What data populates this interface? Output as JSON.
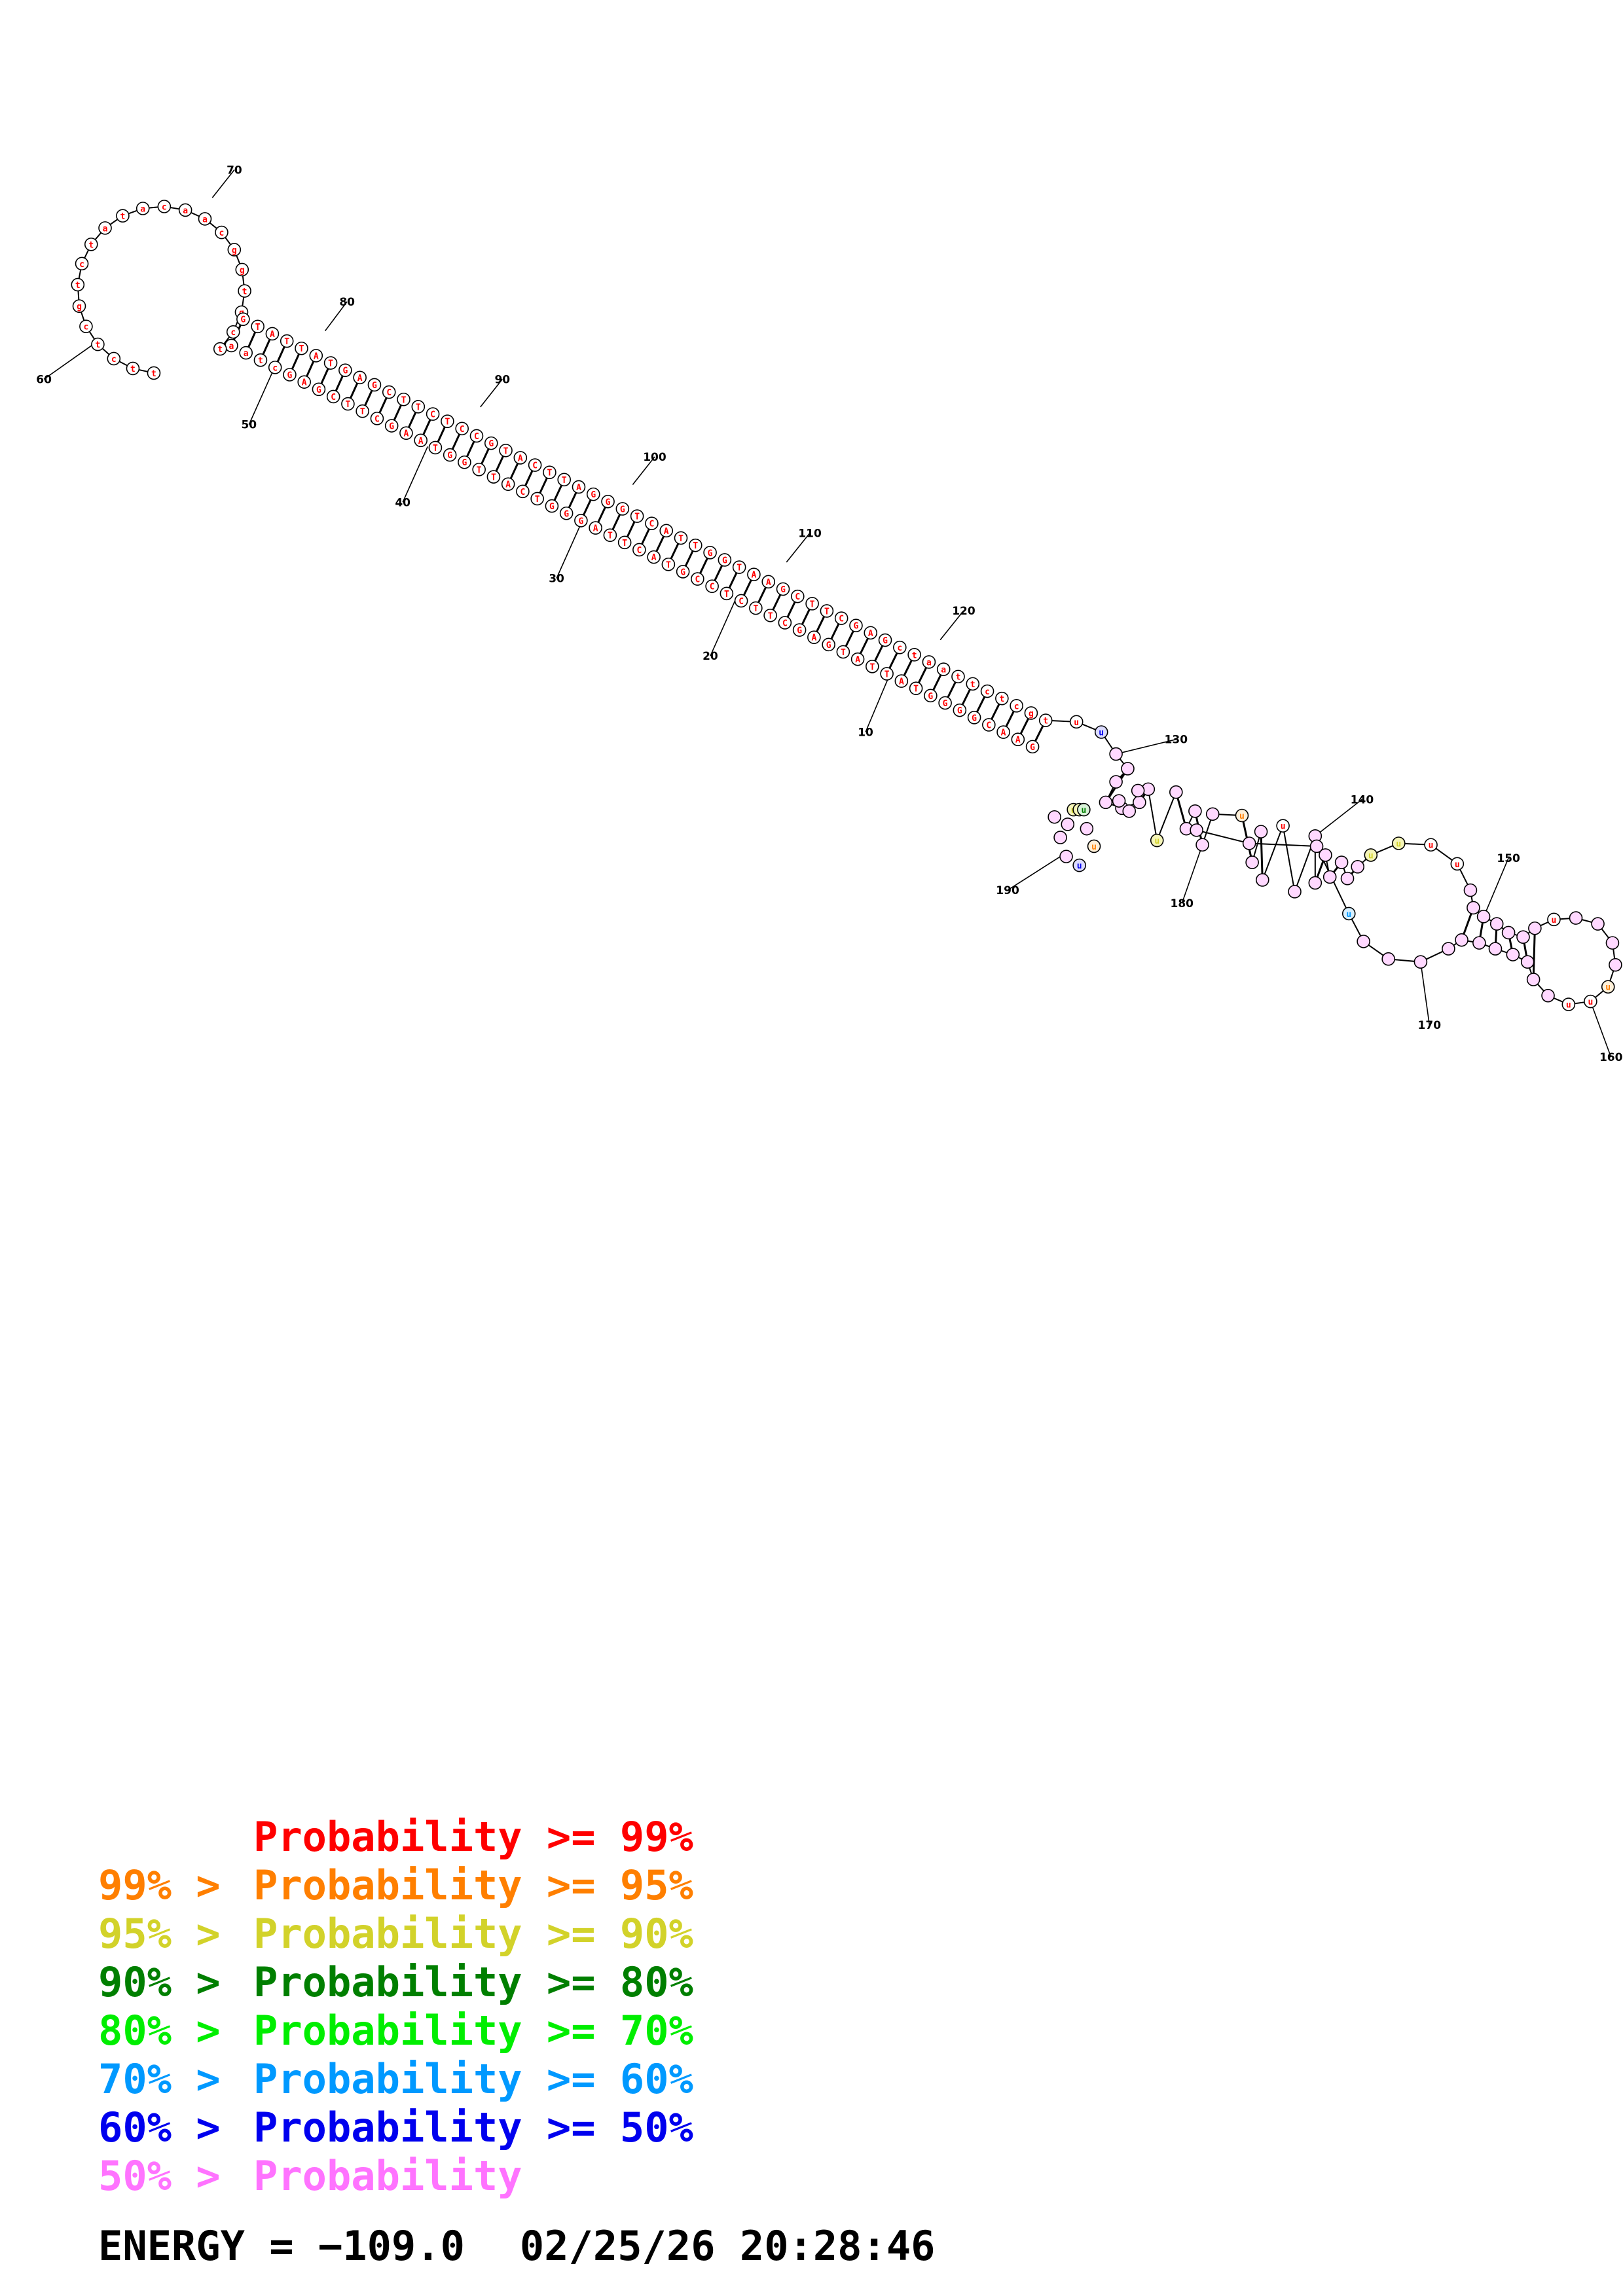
{
  "colors": {
    "p99": "#ff0000",
    "p95": "#ff7f00",
    "p90": "#d2d22a",
    "p80": "#007f00",
    "p70": "#00ee00",
    "p60": "#0099ff",
    "p50": "#0000ee",
    "plow": "#ff73ff"
  },
  "position_labels": [
    "10",
    "20",
    "30",
    "40",
    "50",
    "60",
    "70",
    "80",
    "90",
    "100",
    "110",
    "120",
    "130",
    "140",
    "150",
    "160",
    "170",
    "180",
    "190"
  ],
  "nucleotides_5prime": "GAACGGGGTATTATGAGCTTCTCCGTACTTAGGGTCATTGGTAAGCTTCGAGctaattctcgtctatacaacggtgctgcTTGAAGAGCTTAACCCGTTAAGGATCGTCAAGTAAACCCTGGTTCG",
  "legend": {
    "rows": [
      {
        "prefix": "",
        "text": "Probability >= 99%",
        "color_key": "p99"
      },
      {
        "prefix": "99% >",
        "text": "Probability >= 95%",
        "color_key": "p95"
      },
      {
        "prefix": "95% >",
        "text": "Probability >= 90%",
        "color_key": "p90"
      },
      {
        "prefix": "90% >",
        "text": "Probability >= 80%",
        "color_key": "p80"
      },
      {
        "prefix": "80% >",
        "text": "Probability >= 70%",
        "color_key": "p70"
      },
      {
        "prefix": "70% >",
        "text": "Probability >= 60%",
        "color_key": "p60"
      },
      {
        "prefix": "60% >",
        "text": "Probability >= 50%",
        "color_key": "p50"
      },
      {
        "prefix": "50% >",
        "text": "Probability",
        "color_key": "plow"
      }
    ]
  },
  "footer": {
    "energy": "ENERGY = −109.0",
    "timestamp": "02/25/26 20:28:46"
  }
}
